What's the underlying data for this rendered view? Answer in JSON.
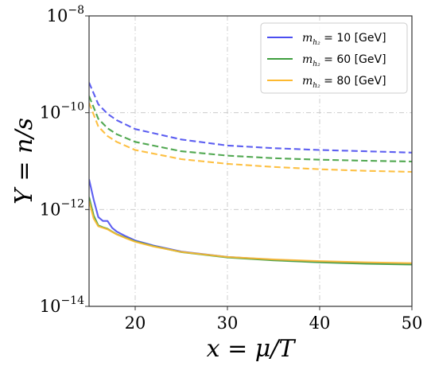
{
  "chart_data": {
    "type": "line",
    "title": "",
    "xlabel": "x = μ/T",
    "ylabel": "Y = n/s",
    "xlim": [
      15,
      50
    ],
    "ylim": [
      1e-14,
      1e-08
    ],
    "yscale": "log",
    "grid": true,
    "grid_style": "dashdot",
    "x_ticks": [
      {
        "value": 20,
        "label": "20"
      },
      {
        "value": 30,
        "label": "30"
      },
      {
        "value": 40,
        "label": "40"
      },
      {
        "value": 50,
        "label": "50"
      }
    ],
    "y_ticks": [
      {
        "value": 1e-14,
        "base": "10",
        "exp": "−14"
      },
      {
        "value": 1e-12,
        "base": "10",
        "exp": "−12"
      },
      {
        "value": 1e-10,
        "base": "10",
        "exp": "−10"
      },
      {
        "value": 1e-08,
        "base": "10",
        "exp": "−8"
      }
    ],
    "legend_position": "top-right",
    "legend": [
      {
        "key": "m10",
        "label_prefix": "m",
        "label_sub": "h₂",
        "label_value": " = 10 ",
        "label_unit": "[GeV]"
      },
      {
        "key": "m60",
        "label_prefix": "m",
        "label_sub": "h₂",
        "label_value": " = 60 ",
        "label_unit": "[GeV]"
      },
      {
        "key": "m80",
        "label_prefix": "m",
        "label_sub": "h₂",
        "label_value": " = 80 ",
        "label_unit": "[GeV]"
      }
    ],
    "series": [
      {
        "key": "m10-dashed",
        "color": "#4b4ef0",
        "style": "dashed",
        "x": [
          15,
          16,
          17,
          18,
          20,
          25,
          30,
          35,
          40,
          45,
          50
        ],
        "y": [
          4.2e-10,
          1.5e-10,
          9.5e-11,
          7e-11,
          4.6e-11,
          2.8e-11,
          2.1e-11,
          1.85e-11,
          1.7e-11,
          1.6e-11,
          1.5e-11
        ]
      },
      {
        "key": "m60-dashed",
        "color": "#3e9e3e",
        "style": "dashed",
        "x": [
          15,
          16,
          17,
          18,
          20,
          25,
          30,
          35,
          40,
          45,
          50
        ],
        "y": [
          2.2e-10,
          7.5e-11,
          4.8e-11,
          3.6e-11,
          2.5e-11,
          1.6e-11,
          1.3e-11,
          1.15e-11,
          1.07e-11,
          1.02e-11,
          9.8e-12
        ]
      },
      {
        "key": "m80-dashed",
        "color": "#fdb92f",
        "style": "dashed",
        "x": [
          15,
          16,
          17,
          18,
          20,
          25,
          30,
          35,
          40,
          45,
          50
        ],
        "y": [
          1.6e-10,
          5.2e-11,
          3.3e-11,
          2.5e-11,
          1.7e-11,
          1.1e-11,
          8.8e-12,
          7.6e-12,
          6.8e-12,
          6.3e-12,
          6e-12
        ]
      },
      {
        "key": "m10-solid",
        "color": "#4b4ef0",
        "style": "solid",
        "x": [
          15,
          15.5,
          16,
          16.5,
          17,
          17.5,
          18,
          19,
          20,
          22,
          25,
          30,
          35,
          40,
          45,
          50
        ],
        "y": [
          4.2e-12,
          1.6e-12,
          7e-13,
          5.8e-13,
          5.8e-13,
          4.2e-13,
          3.5e-13,
          2.8e-13,
          2.3e-13,
          1.8e-13,
          1.35e-13,
          1.05e-13,
          9.2e-14,
          8.3e-14,
          7.8e-14,
          7.5e-14
        ]
      },
      {
        "key": "m60-solid",
        "color": "#3e9e3e",
        "style": "solid",
        "x": [
          15,
          15.5,
          16,
          16.5,
          17,
          17.5,
          18,
          19,
          20,
          22,
          25,
          30,
          35,
          40,
          45,
          50
        ],
        "y": [
          1.8e-12,
          7.5e-13,
          4.7e-13,
          4.3e-13,
          4e-13,
          3.5e-13,
          3.1e-13,
          2.6e-13,
          2.2e-13,
          1.75e-13,
          1.32e-13,
          1.02e-13,
          8.9e-14,
          8.1e-14,
          7.6e-14,
          7.3e-14
        ]
      },
      {
        "key": "m80-solid",
        "color": "#fdb92f",
        "style": "solid",
        "x": [
          15,
          15.5,
          16,
          16.5,
          17,
          17.5,
          18,
          19,
          20,
          22,
          25,
          30,
          35,
          40,
          45,
          50
        ],
        "y": [
          1.5e-12,
          6.5e-13,
          4.5e-13,
          4.2e-13,
          3.9e-13,
          3.45e-13,
          3.05e-13,
          2.55e-13,
          2.15e-13,
          1.72e-13,
          1.33e-13,
          1.05e-13,
          9.3e-14,
          8.6e-14,
          8.1e-14,
          7.8e-14
        ]
      }
    ]
  }
}
